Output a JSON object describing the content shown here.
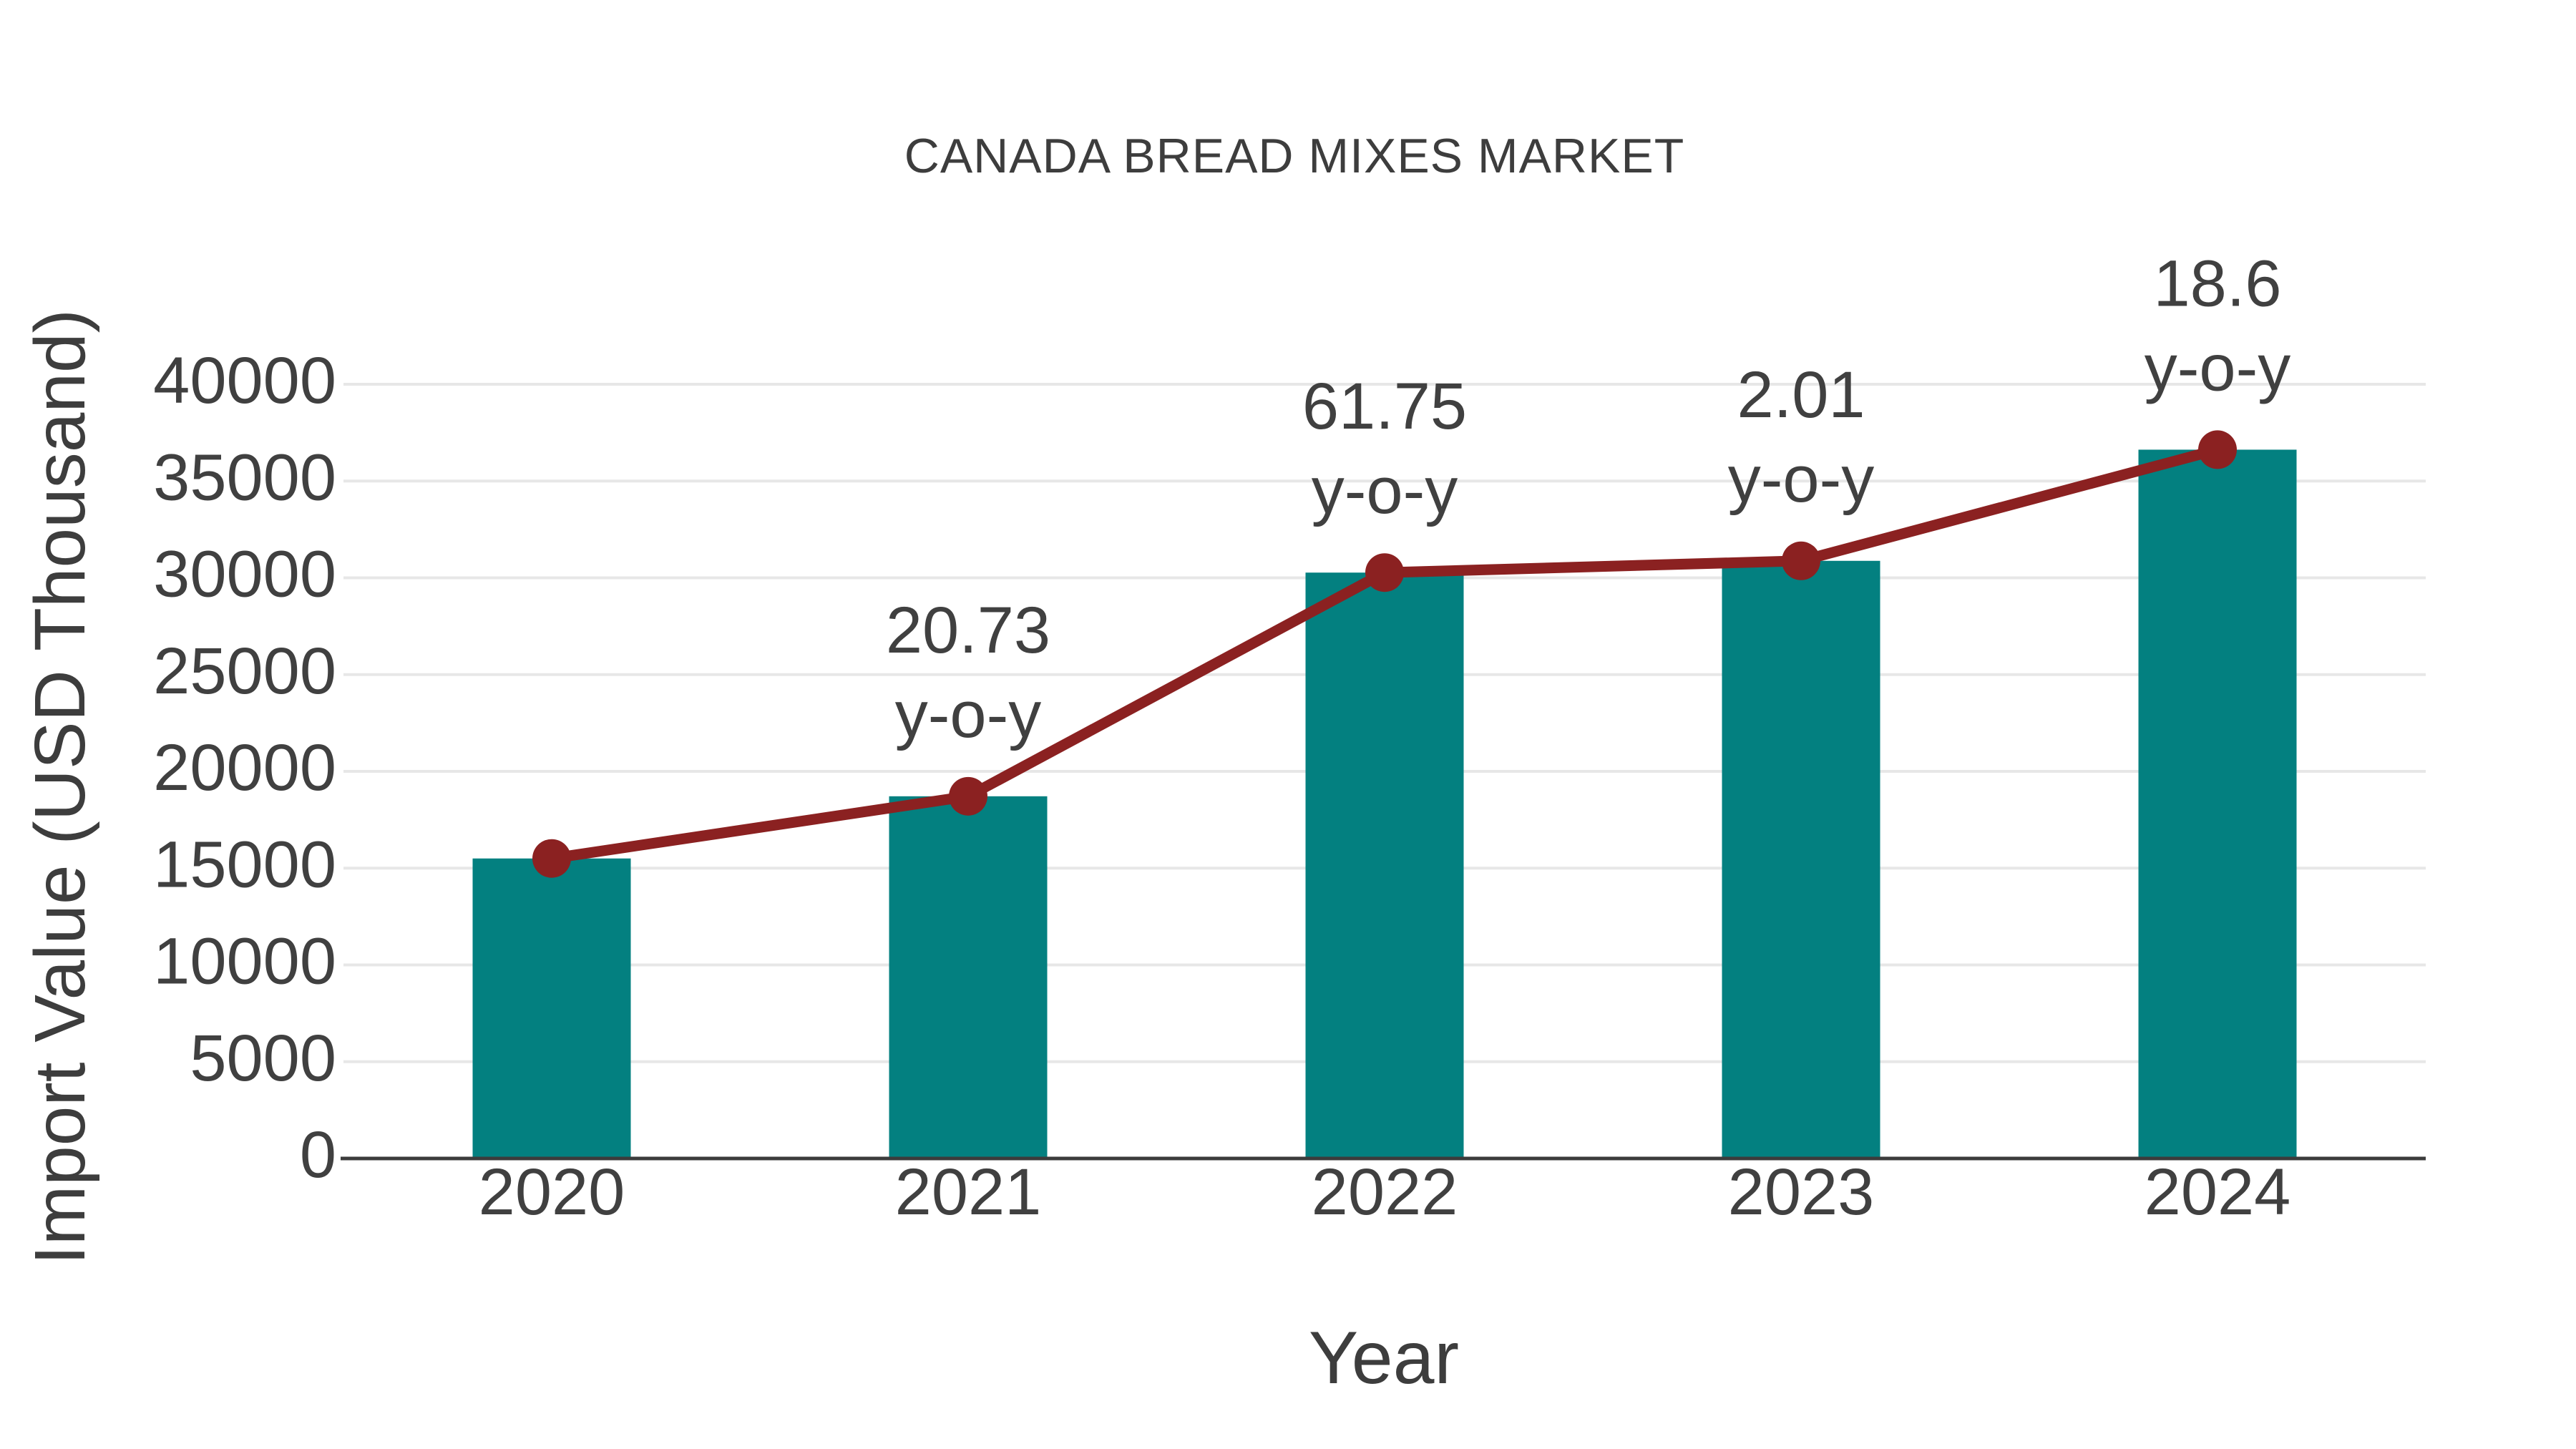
{
  "page": {
    "background": "#ffffff"
  },
  "chart_data": {
    "type": "bar",
    "title": "CANADA BREAD MIXES MARKET",
    "xlabel": "Year",
    "ylabel": "Import Value (USD Thousand)",
    "categories": [
      "2020",
      "2021",
      "2022",
      "2023",
      "2024"
    ],
    "series": [
      {
        "name": "Import Value bars",
        "type": "bar",
        "color": "#038080",
        "values": [
          15500,
          18713,
          30269,
          30877,
          36620
        ]
      },
      {
        "name": "Import Value line",
        "type": "line",
        "color": "#8b2121",
        "values": [
          15500,
          18713,
          30269,
          30877,
          36620
        ]
      }
    ],
    "annotations": [
      {
        "category": "2021",
        "line1": "20.73",
        "line2": "y-o-y"
      },
      {
        "category": "2022",
        "line1": "61.75",
        "line2": "y-o-y"
      },
      {
        "category": "2023",
        "line1": "2.01",
        "line2": "y-o-y"
      },
      {
        "category": "2024",
        "line1": "18.6",
        "line2": "y-o-y"
      }
    ],
    "yticks": [
      0,
      5000,
      10000,
      15000,
      20000,
      25000,
      30000,
      35000,
      40000
    ],
    "ylim": [
      0,
      40000
    ],
    "grid": true,
    "legend_position": "none",
    "colors": {
      "grid": "#e7e7e7",
      "axis": "#3c3c3c",
      "tick_text": "#404040",
      "annotation_text": "#404040"
    }
  }
}
